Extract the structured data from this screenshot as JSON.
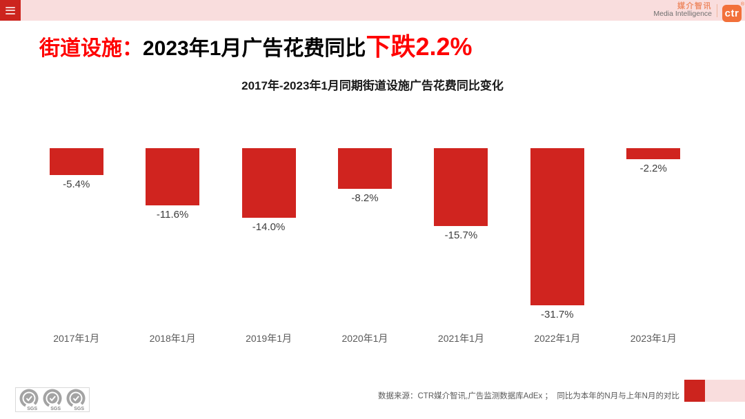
{
  "header": {
    "menu_icon": "hamburger",
    "brand_cn": "媒介智讯",
    "brand_en": "Media Intelligence",
    "logo_text": "ctr",
    "registered_mark": "®"
  },
  "title": {
    "prefix": "街道设施：",
    "middle": "2023年1月广告花费同比",
    "highlight": "下跌2.2%"
  },
  "chart_data": {
    "type": "bar",
    "title": "2017年-2023年1月同期街道设施广告花费同比变化",
    "categories": [
      "2017年1月",
      "2018年1月",
      "2019年1月",
      "2020年1月",
      "2021年1月",
      "2022年1月",
      "2023年1月"
    ],
    "values": [
      -5.4,
      -11.6,
      -14.0,
      -8.2,
      -15.7,
      -31.7,
      -2.2
    ],
    "labels": [
      "-5.4%",
      "-11.6%",
      "-14.0%",
      "-8.2%",
      "-15.7%",
      "-31.7%",
      "-2.2%"
    ],
    "bar_color": "#d0241f",
    "ylim": [
      -35,
      0
    ],
    "grid": false,
    "legend": "none",
    "value_format": "percent",
    "note": "bars hang downward from zero baseline, value labels below bar ends"
  },
  "footer": {
    "source": "数据来源：CTR媒介智讯,广告监测数据库AdEx ；  同比为本年的N月与上年N月的对比",
    "sgs_label": "SGS",
    "sgs_count": 3,
    "accent_red": "#cc241e",
    "accent_pink": "#f9dddd"
  },
  "colors": {
    "title_red": "#ff0000",
    "bar_red": "#d0241f",
    "band_pink": "#f9dddd",
    "ctr_orange": "#f2703a"
  }
}
